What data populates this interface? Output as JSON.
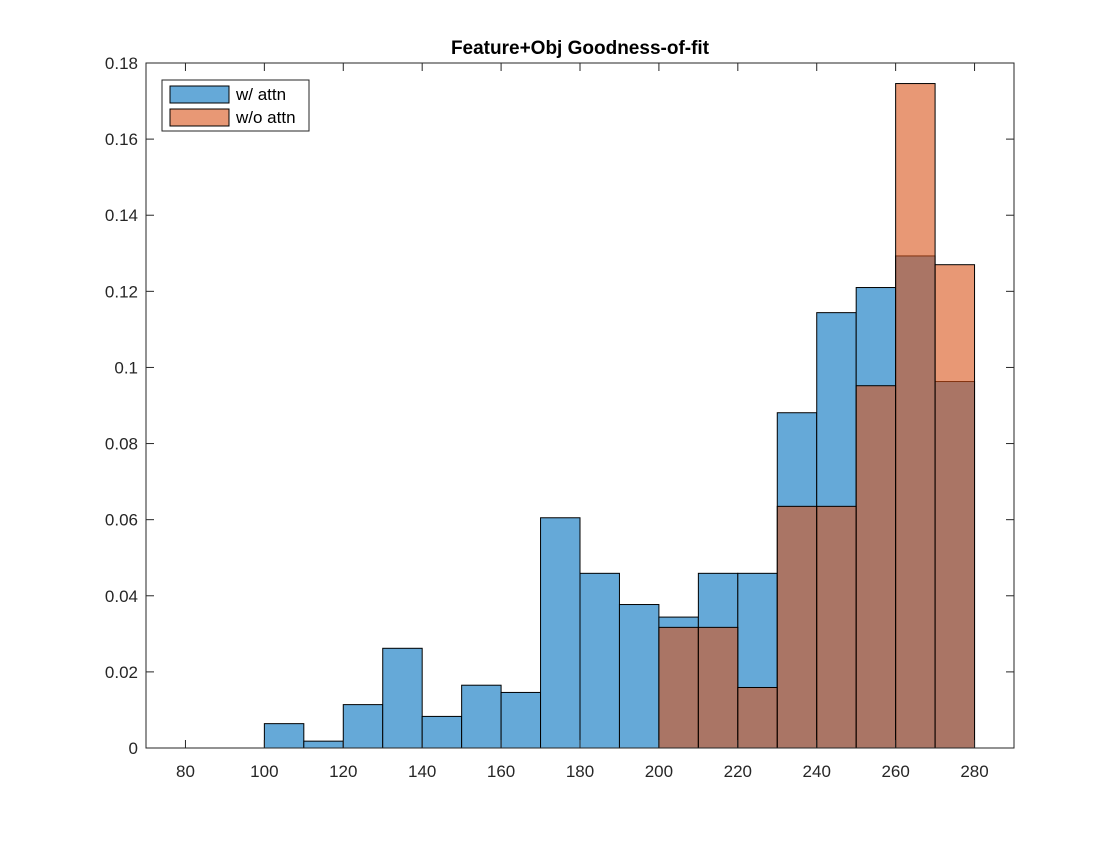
{
  "chart_data": {
    "type": "bar",
    "subtype": "overlaid-histogram",
    "title": "Feature+Obj Goodness-of-fit",
    "xlabel": "",
    "ylabel": "",
    "xlim": [
      70,
      290
    ],
    "ylim": [
      0,
      0.18
    ],
    "x_ticks": [
      80,
      100,
      120,
      140,
      160,
      180,
      200,
      220,
      240,
      260,
      280
    ],
    "y_ticks": [
      0,
      0.02,
      0.04,
      0.06,
      0.08,
      0.1,
      0.12,
      0.14,
      0.16,
      0.18
    ],
    "x_tick_labels": [
      "80",
      "100",
      "120",
      "140",
      "160",
      "180",
      "200",
      "220",
      "240",
      "260",
      "280"
    ],
    "y_tick_labels": [
      "0",
      "0.02",
      "0.04",
      "0.06",
      "0.08",
      "0.1",
      "0.12",
      "0.14",
      "0.16",
      "0.18"
    ],
    "bin_width": 10,
    "grid": false,
    "legend_position": "top-left",
    "series": [
      {
        "name": "w/ attn",
        "color": "#65a9d8",
        "bins": [
          {
            "x": 100,
            "y": 0.0064
          },
          {
            "x": 110,
            "y": 0.0018
          },
          {
            "x": 120,
            "y": 0.0114
          },
          {
            "x": 130,
            "y": 0.0262
          },
          {
            "x": 140,
            "y": 0.0083
          },
          {
            "x": 150,
            "y": 0.0165
          },
          {
            "x": 160,
            "y": 0.0146
          },
          {
            "x": 170,
            "y": 0.0605
          },
          {
            "x": 180,
            "y": 0.0459
          },
          {
            "x": 190,
            "y": 0.0377
          },
          {
            "x": 200,
            "y": 0.0344
          },
          {
            "x": 210,
            "y": 0.0459
          },
          {
            "x": 220,
            "y": 0.0459
          },
          {
            "x": 230,
            "y": 0.0881
          },
          {
            "x": 240,
            "y": 0.1144
          },
          {
            "x": 250,
            "y": 0.121
          },
          {
            "x": 260,
            "y": 0.1293
          },
          {
            "x": 270,
            "y": 0.0963
          }
        ]
      },
      {
        "name": "w/o attn",
        "color": "#e8977a",
        "bins": [
          {
            "x": 200,
            "y": 0.0317
          },
          {
            "x": 210,
            "y": 0.0317
          },
          {
            "x": 220,
            "y": 0.0159
          },
          {
            "x": 230,
            "y": 0.0635
          },
          {
            "x": 240,
            "y": 0.0635
          },
          {
            "x": 250,
            "y": 0.0952
          },
          {
            "x": 260,
            "y": 0.1746
          },
          {
            "x": 270,
            "y": 0.127
          }
        ]
      }
    ],
    "overlap_color": "#ab7767",
    "axis_color": "#262626"
  }
}
